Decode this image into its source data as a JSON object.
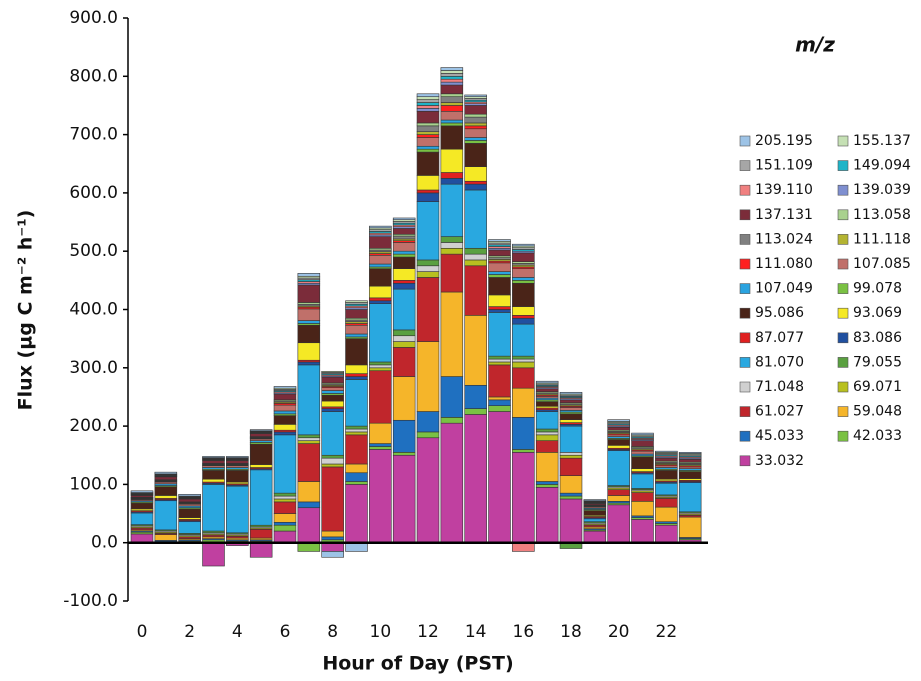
{
  "chart_data": {
    "type": "bar",
    "stacked": true,
    "xlabel": "Hour of Day (PST)",
    "ylabel": "Flux (µg C m⁻² h⁻¹)",
    "legend_title": "m/z",
    "categories": [
      "0",
      null,
      "2",
      null,
      "4",
      null,
      "6",
      null,
      "8",
      null,
      "10",
      null,
      "12",
      null,
      "14",
      null,
      "16",
      null,
      "18",
      null,
      "20",
      null,
      "22",
      null
    ],
    "ylim": [
      -100,
      900
    ],
    "yticks": [
      {
        "value": -100,
        "label": "-100.0"
      },
      {
        "value": 0,
        "label": "0.0"
      },
      {
        "value": 100,
        "label": "100.0"
      },
      {
        "value": 200,
        "label": "200.0"
      },
      {
        "value": 300,
        "label": "300.0"
      },
      {
        "value": 400,
        "label": "400.0"
      },
      {
        "value": 500,
        "label": "500.0"
      },
      {
        "value": 600,
        "label": "600.0"
      },
      {
        "value": 700,
        "label": "700.0"
      },
      {
        "value": 800,
        "label": "800.0"
      },
      {
        "value": 900,
        "label": "900.0"
      }
    ],
    "series": [
      {
        "name": "205.195",
        "color": "#9dc3e6",
        "values": [
          3,
          3,
          3,
          2,
          2,
          2,
          3,
          5,
          -10,
          -15,
          3,
          3,
          5,
          5,
          3,
          3,
          3,
          3,
          3,
          2,
          3,
          3,
          2,
          2
        ]
      },
      {
        "name": "155.137",
        "color": "#c5e0b4",
        "values": [
          1,
          1,
          1,
          1,
          1,
          1,
          2,
          3,
          2,
          3,
          3,
          3,
          5,
          5,
          3,
          3,
          3,
          2,
          2,
          1,
          2,
          2,
          2,
          2
        ]
      },
      {
        "name": "151.109",
        "color": "#a6a6a6",
        "values": [
          1,
          1,
          1,
          1,
          1,
          1,
          2,
          3,
          2,
          3,
          3,
          3,
          5,
          5,
          3,
          3,
          3,
          2,
          2,
          1,
          2,
          2,
          2,
          2
        ]
      },
      {
        "name": "149.094",
        "color": "#1fb4c8",
        "values": [
          1,
          1,
          1,
          1,
          1,
          1,
          2,
          3,
          2,
          3,
          3,
          3,
          5,
          5,
          3,
          3,
          3,
          2,
          2,
          1,
          2,
          2,
          2,
          2
        ]
      },
      {
        "name": "139.110",
        "color": "#f08080",
        "values": [
          1,
          1,
          1,
          1,
          1,
          1,
          2,
          3,
          2,
          3,
          3,
          3,
          5,
          5,
          3,
          3,
          -15,
          2,
          2,
          1,
          2,
          2,
          2,
          2
        ]
      },
      {
        "name": "139.039",
        "color": "#7f8fd0",
        "values": [
          1,
          1,
          1,
          1,
          1,
          1,
          2,
          3,
          2,
          3,
          3,
          3,
          5,
          5,
          3,
          3,
          3,
          2,
          2,
          1,
          2,
          2,
          2,
          2
        ]
      },
      {
        "name": "137.131",
        "color": "#7b2c3a",
        "values": [
          3,
          5,
          5,
          5,
          5,
          5,
          10,
          30,
          10,
          15,
          20,
          10,
          20,
          15,
          15,
          10,
          15,
          5,
          5,
          2,
          5,
          10,
          5,
          5
        ]
      },
      {
        "name": "113.058",
        "color": "#a9d18e",
        "values": [
          1,
          1,
          1,
          1,
          1,
          1,
          2,
          3,
          2,
          3,
          3,
          3,
          5,
          5,
          5,
          3,
          3,
          2,
          2,
          1,
          2,
          2,
          2,
          2
        ]
      },
      {
        "name": "113.024",
        "color": "#808080",
        "values": [
          1,
          1,
          1,
          1,
          1,
          1,
          2,
          3,
          2,
          3,
          3,
          5,
          10,
          10,
          10,
          3,
          3,
          2,
          2,
          1,
          2,
          2,
          2,
          2
        ]
      },
      {
        "name": "111.118",
        "color": "#b4b432",
        "values": [
          1,
          1,
          1,
          1,
          1,
          1,
          2,
          2,
          2,
          3,
          3,
          3,
          5,
          5,
          5,
          3,
          3,
          2,
          2,
          1,
          2,
          2,
          2,
          2
        ]
      },
      {
        "name": "111.080",
        "color": "#ff2020",
        "values": [
          1,
          1,
          1,
          1,
          1,
          1,
          3,
          3,
          2,
          3,
          3,
          3,
          5,
          10,
          5,
          3,
          3,
          2,
          2,
          1,
          2,
          2,
          2,
          2
        ]
      },
      {
        "name": "107.085",
        "color": "#c0706a",
        "values": [
          2,
          3,
          3,
          3,
          3,
          3,
          10,
          20,
          5,
          15,
          15,
          15,
          15,
          15,
          15,
          15,
          15,
          3,
          5,
          2,
          3,
          5,
          3,
          3
        ]
      },
      {
        "name": "107.049",
        "color": "#2aa3e0",
        "values": [
          2,
          3,
          3,
          3,
          3,
          3,
          5,
          5,
          5,
          5,
          5,
          5,
          5,
          5,
          5,
          5,
          5,
          3,
          3,
          2,
          3,
          3,
          3,
          3
        ]
      },
      {
        "name": "99.078",
        "color": "#7ac143",
        "values": [
          2,
          2,
          2,
          2,
          2,
          3,
          3,
          3,
          3,
          3,
          3,
          5,
          5,
          5,
          5,
          5,
          5,
          3,
          3,
          2,
          2,
          2,
          2,
          2
        ]
      },
      {
        "name": "95.086",
        "color": "#4a2418",
        "values": [
          10,
          15,
          15,
          15,
          20,
          35,
          15,
          30,
          10,
          45,
          30,
          20,
          40,
          40,
          40,
          30,
          40,
          8,
          10,
          8,
          10,
          20,
          15,
          12
        ]
      },
      {
        "name": "93.069",
        "color": "#f5e925",
        "values": [
          3,
          5,
          3,
          5,
          3,
          5,
          10,
          30,
          10,
          15,
          20,
          20,
          25,
          40,
          25,
          20,
          15,
          3,
          5,
          2,
          5,
          5,
          3,
          3
        ]
      },
      {
        "name": "87.077",
        "color": "#e02020",
        "values": [
          2,
          2,
          2,
          2,
          2,
          2,
          3,
          3,
          3,
          5,
          5,
          5,
          5,
          10,
          5,
          5,
          5,
          3,
          3,
          2,
          2,
          2,
          2,
          2
        ]
      },
      {
        "name": "83.086",
        "color": "#2050a0",
        "values": [
          2,
          2,
          2,
          2,
          2,
          2,
          5,
          5,
          5,
          5,
          5,
          10,
          15,
          10,
          10,
          5,
          10,
          3,
          3,
          2,
          2,
          2,
          2,
          2
        ]
      },
      {
        "name": "81.070",
        "color": "#29a8e0",
        "values": [
          20,
          50,
          20,
          80,
          80,
          95,
          100,
          120,
          75,
          80,
          100,
          70,
          100,
          90,
          100,
          75,
          55,
          30,
          45,
          5,
          60,
          25,
          20,
          50
        ]
      },
      {
        "name": "79.055",
        "color": "#5aa040",
        "values": [
          2,
          2,
          2,
          3,
          2,
          3,
          5,
          5,
          5,
          5,
          5,
          10,
          10,
          10,
          10,
          5,
          5,
          5,
          -10,
          2,
          2,
          2,
          2,
          2
        ]
      },
      {
        "name": "71.048",
        "color": "#d0d0d0",
        "values": [
          2,
          2,
          2,
          2,
          2,
          2,
          5,
          5,
          10,
          5,
          5,
          10,
          10,
          10,
          10,
          5,
          5,
          5,
          5,
          2,
          2,
          2,
          2,
          2
        ]
      },
      {
        "name": "69.071",
        "color": "#b8c020",
        "values": [
          2,
          2,
          2,
          2,
          2,
          2,
          5,
          5,
          5,
          5,
          5,
          10,
          10,
          10,
          10,
          5,
          10,
          10,
          5,
          2,
          3,
          3,
          2,
          2
        ]
      },
      {
        "name": "61.027",
        "color": "#c0262c",
        "values": [
          3,
          2,
          3,
          3,
          3,
          15,
          20,
          65,
          110,
          50,
          90,
          50,
          110,
          65,
          85,
          55,
          35,
          20,
          30,
          3,
          10,
          15,
          15,
          3
        ]
      },
      {
        "name": "59.048",
        "color": "#f5b52a",
        "values": [
          2,
          10,
          2,
          3,
          3,
          3,
          15,
          35,
          10,
          15,
          35,
          75,
          120,
          145,
          120,
          5,
          50,
          50,
          30,
          3,
          10,
          25,
          25,
          35
        ]
      },
      {
        "name": "45.033",
        "color": "#1f70c0",
        "values": [
          2,
          2,
          2,
          2,
          2,
          2,
          5,
          10,
          5,
          15,
          5,
          55,
          35,
          70,
          40,
          10,
          55,
          5,
          5,
          2,
          3,
          3,
          3,
          2
        ]
      },
      {
        "name": "42.033",
        "color": "#7ac143",
        "values": [
          3,
          2,
          3,
          5,
          3,
          3,
          10,
          -15,
          5,
          5,
          5,
          5,
          10,
          10,
          10,
          10,
          5,
          5,
          5,
          2,
          3,
          3,
          3,
          2
        ]
      },
      {
        "name": "33.032",
        "color": "#c040a0",
        "values": [
          15,
          0,
          0,
          -40,
          -5,
          -25,
          20,
          60,
          -15,
          100,
          160,
          150,
          180,
          205,
          220,
          225,
          155,
          95,
          75,
          20,
          65,
          40,
          30,
          5
        ]
      }
    ]
  }
}
